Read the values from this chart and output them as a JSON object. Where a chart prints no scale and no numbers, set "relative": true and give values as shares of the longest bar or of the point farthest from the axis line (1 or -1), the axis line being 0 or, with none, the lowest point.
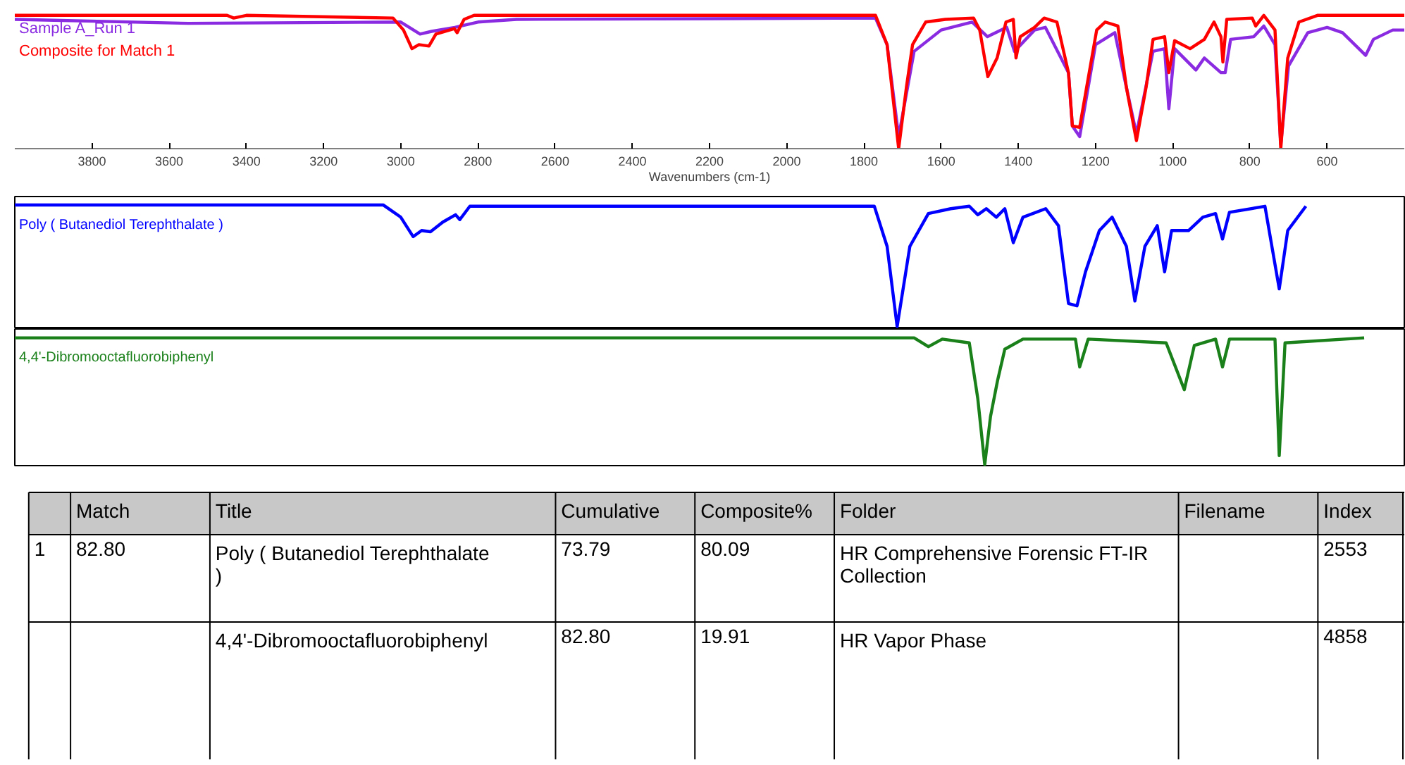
{
  "chart_data": [
    {
      "type": "line",
      "xlabel": "Wavenumbers (cm-1)",
      "xlim": [
        4000,
        400
      ],
      "xticks": [
        3800,
        3600,
        3400,
        3200,
        3000,
        2800,
        2600,
        2400,
        2200,
        2000,
        1800,
        1600,
        1400,
        1200,
        1000,
        800,
        600
      ],
      "relative": true,
      "tick_labels": "x",
      "grid": false,
      "series": [
        {
          "name": "Sample A_Run 1",
          "color": "#8a2be2",
          "x": [
            4000,
            3550,
            3000,
            2950,
            2920,
            2860,
            2800,
            2700,
            1770,
            1740,
            1710,
            1670,
            1600,
            1520,
            1480,
            1430,
            1410,
            1358,
            1330,
            1270,
            1260,
            1241,
            1200,
            1150,
            1120,
            1094,
            1051,
            1021,
            1010,
            995,
            940,
            918,
            875,
            864,
            850,
            790,
            764,
            735,
            720,
            700,
            650,
            600,
            560,
            500,
            480,
            430,
            400
          ],
          "values": [
            0.97,
            0.94,
            0.95,
            0.86,
            0.88,
            0.91,
            0.95,
            0.97,
            0.98,
            0.78,
            0.09,
            0.73,
            0.89,
            0.95,
            0.84,
            0.91,
            0.73,
            0.89,
            0.91,
            0.57,
            0.17,
            0.09,
            0.78,
            0.87,
            0.46,
            0.11,
            0.73,
            0.75,
            0.3,
            0.75,
            0.59,
            0.68,
            0.57,
            0.57,
            0.82,
            0.84,
            0.92,
            0.78,
            0.03,
            0.62,
            0.87,
            0.91,
            0.87,
            0.7,
            0.82,
            0.89,
            0.89
          ]
        },
        {
          "name": "Composite for Match 1",
          "color": "#ff0000",
          "x": [
            4000,
            3450,
            3433,
            3400,
            3020,
            2993,
            2971,
            2953,
            2927,
            2909,
            2861,
            2854,
            2836,
            2810,
            1770,
            1740,
            1710,
            1690,
            1674,
            1640,
            1589,
            1516,
            1500,
            1479,
            1455,
            1432,
            1413,
            1406,
            1395,
            1358,
            1333,
            1300,
            1270,
            1260,
            1241,
            1223,
            1197,
            1175,
            1142,
            1120,
            1094,
            1069,
            1051,
            1021,
            1010,
            995,
            955,
            918,
            893,
            875,
            870,
            860,
            794,
            785,
            764,
            735,
            720,
            702,
            673,
            625,
            400
          ],
          "values": [
            1.0,
            1.0,
            0.98,
            1.0,
            0.98,
            0.89,
            0.75,
            0.78,
            0.77,
            0.86,
            0.9,
            0.87,
            0.97,
            1.0,
            1.0,
            0.78,
            0.0,
            0.46,
            0.78,
            0.95,
            0.97,
            0.98,
            0.89,
            0.54,
            0.68,
            0.95,
            0.97,
            0.68,
            0.84,
            0.91,
            0.98,
            0.95,
            0.57,
            0.17,
            0.16,
            0.46,
            0.89,
            0.95,
            0.92,
            0.46,
            0.06,
            0.46,
            0.82,
            0.84,
            0.57,
            0.81,
            0.75,
            0.82,
            0.95,
            0.84,
            0.65,
            0.97,
            0.98,
            0.92,
            1.0,
            0.89,
            0.0,
            0.68,
            0.95,
            1.0,
            1.0
          ]
        }
      ]
    },
    {
      "type": "line",
      "xlim": [
        4000,
        400
      ],
      "relative": true,
      "tick_labels": false,
      "grid": false,
      "series": [
        {
          "name": "Poly ( Butanediol Terephthalate )",
          "color": "#0000ff",
          "x": [
            4000,
            3045,
            3000,
            2968,
            2946,
            2923,
            2891,
            2858,
            2847,
            2821,
            1773,
            1740,
            1714,
            1681,
            1633,
            1575,
            1527,
            1505,
            1483,
            1457,
            1435,
            1413,
            1388,
            1329,
            1296,
            1270,
            1248,
            1226,
            1190,
            1157,
            1120,
            1098,
            1072,
            1040,
            1021,
            1003,
            959,
            922,
            889,
            871,
            853,
            761,
            724,
            702,
            655
          ],
          "values": [
            1.0,
            1.0,
            0.9,
            0.74,
            0.79,
            0.78,
            0.86,
            0.92,
            0.88,
            0.99,
            0.99,
            0.66,
            0.0,
            0.66,
            0.93,
            0.97,
            0.99,
            0.92,
            0.97,
            0.9,
            0.97,
            0.69,
            0.9,
            0.97,
            0.83,
            0.19,
            0.17,
            0.45,
            0.79,
            0.9,
            0.66,
            0.21,
            0.66,
            0.83,
            0.45,
            0.79,
            0.79,
            0.9,
            0.93,
            0.72,
            0.94,
            0.99,
            0.31,
            0.79,
            0.99
          ]
        }
      ]
    },
    {
      "type": "line",
      "xlim": [
        4000,
        400
      ],
      "relative": true,
      "tick_labels": false,
      "grid": false,
      "series": [
        {
          "name": "4,4'-Dibromooctafluorobiphenyl",
          "color": "#1a801a",
          "x": [
            4000,
            1670,
            1633,
            1597,
            1527,
            1505,
            1487,
            1472,
            1454,
            1435,
            1388,
            1252,
            1241,
            1219,
            1017,
            970,
            944,
            889,
            871,
            853,
            735,
            724,
            709,
            504
          ],
          "values": [
            1.0,
            1.0,
            0.93,
            0.99,
            0.96,
            0.52,
            0.0,
            0.38,
            0.66,
            0.91,
            0.99,
            0.99,
            0.77,
            0.99,
            0.96,
            0.59,
            0.94,
            0.99,
            0.77,
            0.99,
            0.99,
            0.07,
            0.96,
            1.0
          ]
        }
      ]
    },
    {
      "type": "other",
      "annotations": [
        "Match",
        "Title",
        "Cumulative",
        "Composite%",
        "Folder",
        "Filename",
        "Index",
        "1",
        "82.80",
        "Poly ( Butanediol Terephthalate )",
        "73.79",
        "80.09",
        "HR Comprehensive Forensic FT-IR Collection",
        "2553",
        "4,4'-Dibromooctafluorobiphenyl",
        "82.80",
        "19.91",
        "HR Vapor Phase",
        "4858"
      ]
    }
  ]
}
